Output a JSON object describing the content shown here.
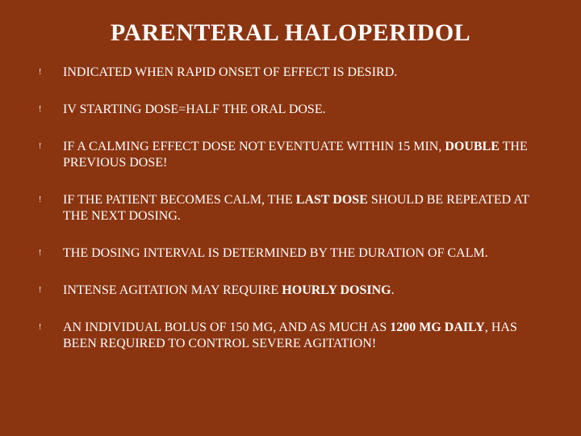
{
  "slide": {
    "background_color": "#8a3410",
    "text_color": "#ffffff",
    "title": "PARENTERAL HALOPERIDOL",
    "title_fontsize": 30,
    "body_fontsize": 16,
    "bullet_marker": "!",
    "bullets": [
      {
        "segments": [
          {
            "text": "INDICATED WHEN RAPID ONSET OF EFFECT IS DESIRD.",
            "bold": false
          }
        ]
      },
      {
        "segments": [
          {
            "text": "IV STARTING DOSE=HALF THE ORAL DOSE.",
            "bold": false
          }
        ]
      },
      {
        "segments": [
          {
            "text": "IF A CALMING EFFECT DOSE NOT EVENTUATE WITHIN 15 MIN, ",
            "bold": false
          },
          {
            "text": "DOUBLE",
            "bold": true
          },
          {
            "text": " THE PREVIOUS DOSE!",
            "bold": false
          }
        ]
      },
      {
        "segments": [
          {
            "text": "IF THE PATIENT BECOMES CALM, THE ",
            "bold": false
          },
          {
            "text": "LAST DOSE",
            "bold": true
          },
          {
            "text": " SHOULD BE REPEATED AT THE NEXT DOSING.",
            "bold": false
          }
        ]
      },
      {
        "segments": [
          {
            "text": "THE DOSING INTERVAL IS DETERMINED BY THE DURATION OF CALM.",
            "bold": false
          }
        ]
      },
      {
        "segments": [
          {
            "text": "INTENSE AGITATION MAY REQUIRE ",
            "bold": false
          },
          {
            "text": "HOURLY DOSING",
            "bold": true
          },
          {
            "text": ".",
            "bold": false
          }
        ]
      },
      {
        "segments": [
          {
            "text": "AN INDIVIDUAL BOLUS OF 150 MG, AND AS MUCH AS ",
            "bold": false
          },
          {
            "text": "1200 MG DAILY",
            "bold": true
          },
          {
            "text": ", HAS BEEN REQUIRED TO CONTROL SEVERE AGITATION!",
            "bold": false
          }
        ]
      }
    ]
  }
}
